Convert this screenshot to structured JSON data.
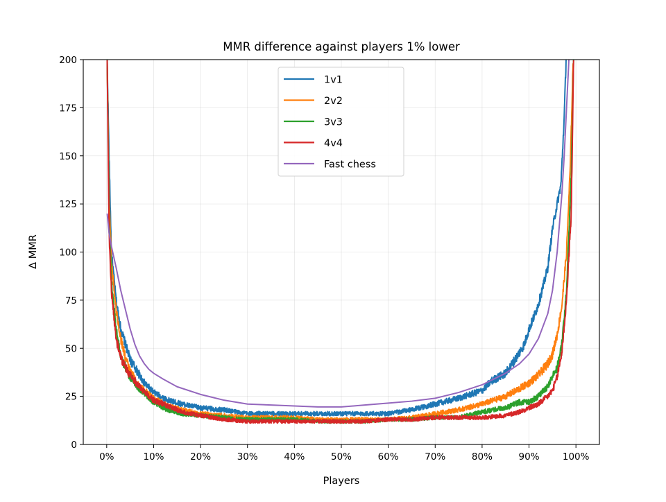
{
  "chart_data": {
    "type": "line",
    "title": "MMR difference against players 1% lower",
    "xlabel": "Players",
    "ylabel": "Δ MMR",
    "xlim": [
      -5,
      105
    ],
    "ylim": [
      0,
      200
    ],
    "xticks": [
      0,
      10,
      20,
      30,
      40,
      50,
      60,
      70,
      80,
      90,
      100
    ],
    "xtick_labels": [
      "0%",
      "10%",
      "20%",
      "30%",
      "40%",
      "50%",
      "60%",
      "70%",
      "80%",
      "90%",
      "100%"
    ],
    "yticks": [
      0,
      25,
      50,
      75,
      100,
      125,
      150,
      175,
      200
    ],
    "ytick_labels": [
      "0",
      "25",
      "50",
      "75",
      "100",
      "125",
      "150",
      "175",
      "200"
    ],
    "grid": true,
    "legend_position": "top-center",
    "series": [
      {
        "name": "1v1",
        "color": "#1f77b4",
        "noisy": true,
        "x": [
          0.1,
          0.5,
          1,
          2,
          3,
          4,
          5,
          6,
          8,
          10,
          13,
          16,
          20,
          25,
          30,
          35,
          40,
          45,
          50,
          55,
          60,
          65,
          70,
          75,
          80,
          82,
          85,
          87,
          89,
          90,
          91,
          92,
          93,
          94,
          95,
          96,
          96.8,
          97.5,
          97.9
        ],
        "y": [
          200,
          150,
          100,
          75,
          60,
          52,
          44,
          40,
          32,
          27,
          23,
          21,
          19,
          18,
          16,
          16,
          16,
          16,
          16,
          16,
          16,
          18,
          21,
          24,
          28,
          33,
          37,
          44,
          52,
          60,
          66,
          73,
          82,
          92,
          112,
          125,
          135,
          170,
          200
        ]
      },
      {
        "name": "2v2",
        "color": "#ff7f0e",
        "noisy": true,
        "x": [
          0.1,
          0.5,
          1,
          2,
          3,
          4,
          5,
          7,
          10,
          13,
          16,
          20,
          25,
          30,
          35,
          40,
          45,
          50,
          55,
          60,
          65,
          70,
          75,
          80,
          85,
          88,
          90,
          92,
          94,
          95,
          96,
          97,
          98,
          98.8,
          99.4
        ],
        "y": [
          200,
          130,
          95,
          70,
          55,
          45,
          38,
          30,
          24,
          20,
          18,
          16,
          15,
          14,
          14,
          14,
          13,
          13,
          13,
          13,
          14,
          16,
          18,
          21,
          25,
          29,
          32,
          36,
          42,
          47,
          57,
          72,
          100,
          145,
          200
        ]
      },
      {
        "name": "3v3",
        "color": "#2ca02c",
        "noisy": true,
        "x": [
          0.1,
          0.5,
          1,
          2,
          3,
          4,
          5,
          7,
          10,
          13,
          16,
          20,
          25,
          30,
          35,
          40,
          45,
          50,
          55,
          60,
          65,
          70,
          75,
          80,
          85,
          88,
          90,
          92,
          94,
          95,
          96,
          97,
          98,
          99,
          99.5
        ],
        "y": [
          200,
          120,
          85,
          60,
          46,
          40,
          35,
          29,
          22,
          18,
          16,
          15,
          14,
          13,
          13,
          13,
          12,
          12,
          12,
          13,
          13,
          14,
          14,
          17,
          19,
          22,
          22,
          25,
          30,
          35,
          40,
          52,
          80,
          140,
          200
        ]
      },
      {
        "name": "4v4",
        "color": "#d62728",
        "noisy": true,
        "x": [
          0.1,
          0.5,
          1,
          2,
          3,
          4,
          5,
          7,
          10,
          13,
          16,
          20,
          25,
          30,
          35,
          40,
          45,
          50,
          55,
          60,
          65,
          70,
          75,
          80,
          85,
          88,
          90,
          92,
          94,
          95,
          96,
          97,
          98,
          99,
          99.5
        ],
        "y": [
          200,
          110,
          80,
          55,
          45,
          40,
          36,
          30,
          23,
          20,
          17,
          15,
          13,
          12,
          12,
          12,
          12,
          12,
          12,
          13,
          13,
          14,
          14,
          14,
          15,
          17,
          19,
          21,
          25,
          28,
          35,
          48,
          75,
          120,
          200
        ]
      },
      {
        "name": "Fast chess",
        "color": "#9467bd",
        "noisy": false,
        "x": [
          0.1,
          0.5,
          1,
          2,
          3,
          4,
          5,
          6,
          7,
          8,
          9,
          10,
          12,
          15,
          20,
          25,
          30,
          35,
          40,
          45,
          50,
          55,
          60,
          65,
          70,
          75,
          80,
          85,
          88,
          90,
          92,
          94,
          95,
          96,
          97,
          97.5,
          98,
          98.5
        ],
        "y": [
          120,
          110,
          103,
          92,
          80,
          70,
          60,
          52,
          46,
          42,
          39,
          37,
          34,
          30,
          26,
          23,
          21,
          20.5,
          20,
          19.5,
          19.5,
          20.5,
          21.5,
          22.5,
          24,
          27,
          31,
          37,
          42,
          47,
          55,
          68,
          80,
          100,
          130,
          150,
          175,
          200
        ]
      }
    ]
  }
}
